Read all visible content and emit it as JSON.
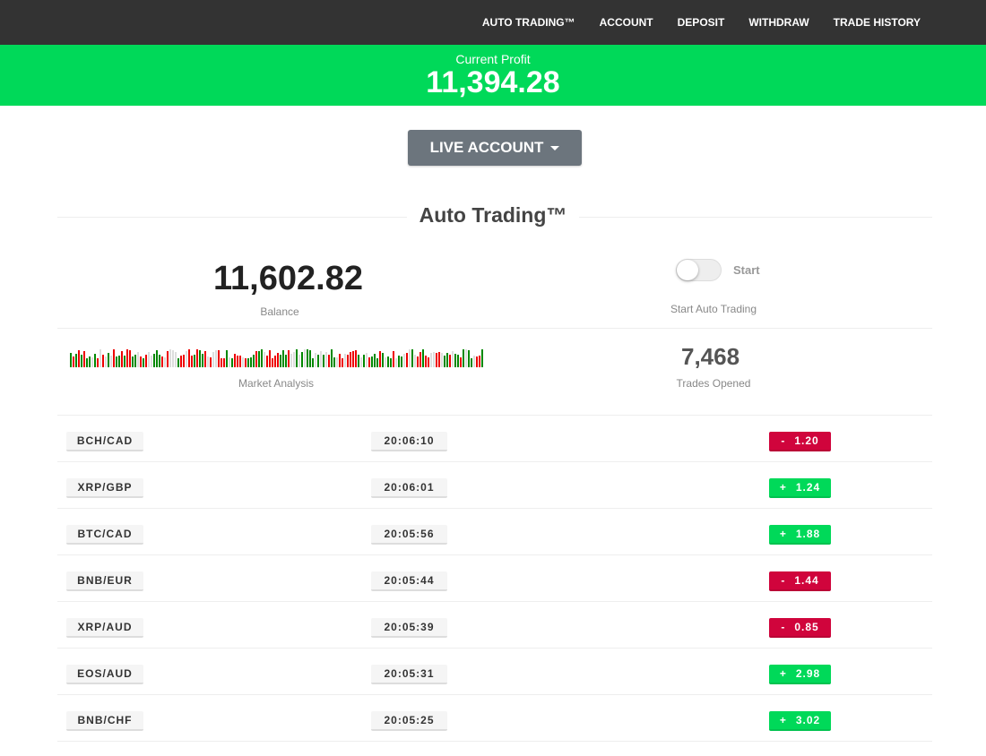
{
  "nav": [
    "AUTO TRADING™",
    "ACCOUNT",
    "DEPOSIT",
    "WITHDRAW",
    "TRADE HISTORY"
  ],
  "profit": {
    "label": "Current Profit",
    "value": "11,394.28"
  },
  "account_button": "LIVE ACCOUNT",
  "section_title": "Auto Trading™",
  "balance": {
    "value": "11,602.82",
    "label": "Balance"
  },
  "toggle": {
    "label": "Start",
    "caption": "Start Auto Trading",
    "on": false
  },
  "market_analysis": {
    "label": "Market Analysis"
  },
  "trades_opened": {
    "value": "7,468",
    "label": "Trades Opened"
  },
  "colors": {
    "green": "#00d959",
    "red": "#d0043c",
    "nav": "#333333",
    "button": "#6c757d"
  },
  "trades": [
    {
      "pair": "BCH/CAD",
      "time": "20:06:10",
      "sign": "-",
      "amount": "1.20"
    },
    {
      "pair": "XRP/GBP",
      "time": "20:06:01",
      "sign": "+",
      "amount": "1.24"
    },
    {
      "pair": "BTC/CAD",
      "time": "20:05:56",
      "sign": "+",
      "amount": "1.88"
    },
    {
      "pair": "BNB/EUR",
      "time": "20:05:44",
      "sign": "-",
      "amount": "1.44"
    },
    {
      "pair": "XRP/AUD",
      "time": "20:05:39",
      "sign": "-",
      "amount": "0.85"
    },
    {
      "pair": "EOS/AUD",
      "time": "20:05:31",
      "sign": "+",
      "amount": "2.98"
    },
    {
      "pair": "BNB/CHF",
      "time": "20:05:25",
      "sign": "+",
      "amount": "3.02"
    }
  ]
}
